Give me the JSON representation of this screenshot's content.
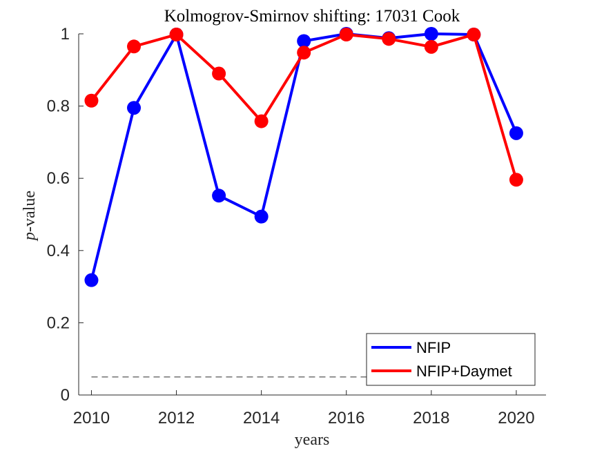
{
  "chart_data": {
    "type": "line",
    "title": "Kolmogrov-Smirnov shifting: 17031 Cook",
    "xlabel": "years",
    "ylabel_italic": "p",
    "ylabel_rest": "-value",
    "xlim": [
      2009.7,
      2020.7
    ],
    "ylim": [
      0,
      1
    ],
    "x_ticks": [
      2010,
      2012,
      2014,
      2016,
      2018,
      2020
    ],
    "y_ticks": [
      0,
      0.2,
      0.4,
      0.6,
      0.8,
      1
    ],
    "y_tick_labels": [
      "0",
      "0.2",
      "0.4",
      "0.6",
      "0.8",
      "1"
    ],
    "x": [
      2010,
      2011,
      2012,
      2013,
      2014,
      2015,
      2016,
      2017,
      2018,
      2019,
      2020
    ],
    "series": [
      {
        "name": "NFIP",
        "color": "#0000ff",
        "values": [
          0.318,
          0.795,
          0.998,
          0.552,
          0.494,
          0.98,
          1.0,
          0.988,
          1.0,
          0.998,
          0.725
        ]
      },
      {
        "name": "NFIP+Daymet",
        "color": "#ff0000",
        "values": [
          0.815,
          0.965,
          0.998,
          0.89,
          0.758,
          0.948,
          0.998,
          0.986,
          0.964,
          0.998,
          0.596
        ]
      }
    ],
    "reference_line": {
      "y": 0.05,
      "x_range": [
        2010,
        2020
      ],
      "style": "dashed",
      "color": "#555555"
    },
    "legend_position": "bottom-right",
    "grid": false
  }
}
